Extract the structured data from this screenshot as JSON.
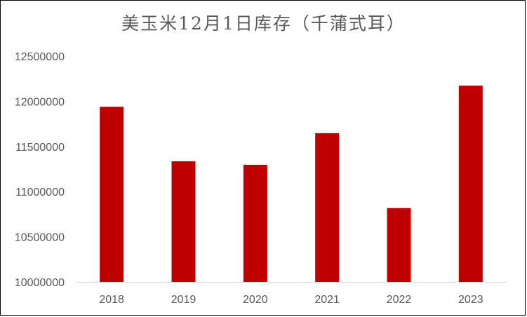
{
  "chart_data": {
    "type": "bar",
    "title": "美玉米12月1日库存（千蒲式耳）",
    "categories": [
      "2018",
      "2019",
      "2020",
      "2021",
      "2022",
      "2023"
    ],
    "values": [
      11939000,
      11336000,
      11297000,
      11647000,
      10818000,
      12173000
    ],
    "ylim": [
      10000000,
      12500000
    ],
    "yticks": [
      10000000,
      10500000,
      11000000,
      11500000,
      12000000,
      12500000
    ],
    "ytick_labels": [
      "10000000",
      "10500000",
      "11000000",
      "11500000",
      "12000000",
      "12500000"
    ],
    "xlabel": "",
    "ylabel": "",
    "grid": false,
    "legend": "none",
    "bar_color": "#C00000",
    "axis_color": "#D9D9D9",
    "text_color": "#595959"
  }
}
